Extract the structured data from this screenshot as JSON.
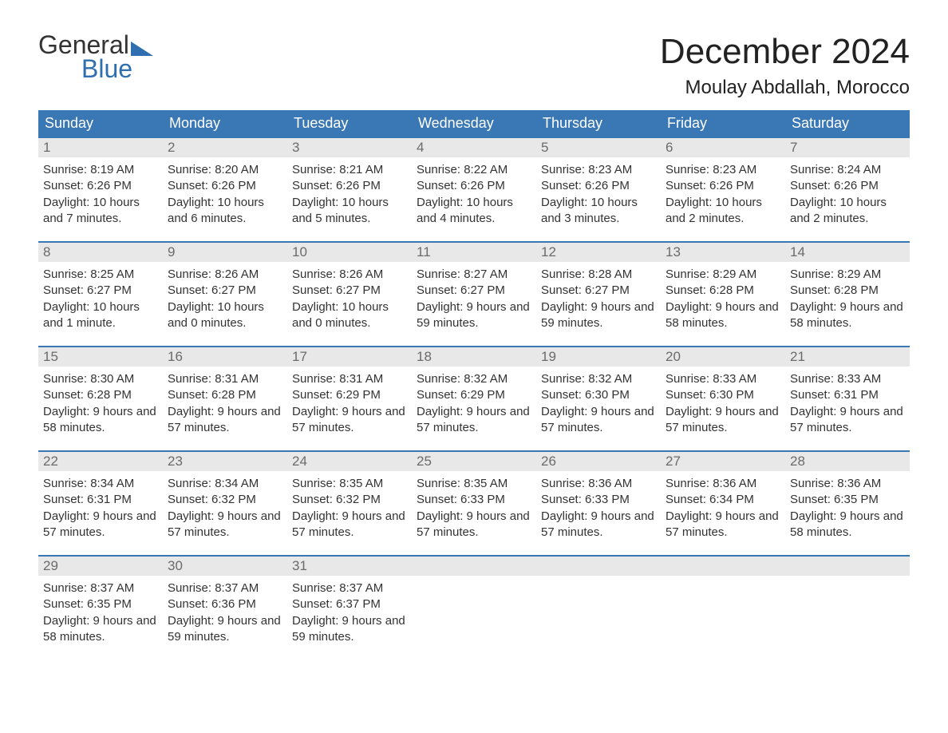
{
  "logo": {
    "word1": "General",
    "word2": "Blue"
  },
  "title": "December 2024",
  "location": "Moulay Abdallah, Morocco",
  "colors": {
    "header_bg": "#3a77b5",
    "header_text": "#ffffff",
    "daynum_bg": "#e8e8e8",
    "daynum_text": "#6b6b6b",
    "border": "#3a77b5",
    "logo_blue": "#2f6fb0",
    "text": "#333333",
    "background": "#ffffff"
  },
  "day_names": [
    "Sunday",
    "Monday",
    "Tuesday",
    "Wednesday",
    "Thursday",
    "Friday",
    "Saturday"
  ],
  "labels": {
    "sunrise": "Sunrise:",
    "sunset": "Sunset:",
    "daylight": "Daylight:"
  },
  "weeks": [
    [
      {
        "n": "1",
        "sr": "8:19 AM",
        "ss": "6:26 PM",
        "dl": "10 hours and 7 minutes."
      },
      {
        "n": "2",
        "sr": "8:20 AM",
        "ss": "6:26 PM",
        "dl": "10 hours and 6 minutes."
      },
      {
        "n": "3",
        "sr": "8:21 AM",
        "ss": "6:26 PM",
        "dl": "10 hours and 5 minutes."
      },
      {
        "n": "4",
        "sr": "8:22 AM",
        "ss": "6:26 PM",
        "dl": "10 hours and 4 minutes."
      },
      {
        "n": "5",
        "sr": "8:23 AM",
        "ss": "6:26 PM",
        "dl": "10 hours and 3 minutes."
      },
      {
        "n": "6",
        "sr": "8:23 AM",
        "ss": "6:26 PM",
        "dl": "10 hours and 2 minutes."
      },
      {
        "n": "7",
        "sr": "8:24 AM",
        "ss": "6:26 PM",
        "dl": "10 hours and 2 minutes."
      }
    ],
    [
      {
        "n": "8",
        "sr": "8:25 AM",
        "ss": "6:27 PM",
        "dl": "10 hours and 1 minute."
      },
      {
        "n": "9",
        "sr": "8:26 AM",
        "ss": "6:27 PM",
        "dl": "10 hours and 0 minutes."
      },
      {
        "n": "10",
        "sr": "8:26 AM",
        "ss": "6:27 PM",
        "dl": "10 hours and 0 minutes."
      },
      {
        "n": "11",
        "sr": "8:27 AM",
        "ss": "6:27 PM",
        "dl": "9 hours and 59 minutes."
      },
      {
        "n": "12",
        "sr": "8:28 AM",
        "ss": "6:27 PM",
        "dl": "9 hours and 59 minutes."
      },
      {
        "n": "13",
        "sr": "8:29 AM",
        "ss": "6:28 PM",
        "dl": "9 hours and 58 minutes."
      },
      {
        "n": "14",
        "sr": "8:29 AM",
        "ss": "6:28 PM",
        "dl": "9 hours and 58 minutes."
      }
    ],
    [
      {
        "n": "15",
        "sr": "8:30 AM",
        "ss": "6:28 PM",
        "dl": "9 hours and 58 minutes."
      },
      {
        "n": "16",
        "sr": "8:31 AM",
        "ss": "6:28 PM",
        "dl": "9 hours and 57 minutes."
      },
      {
        "n": "17",
        "sr": "8:31 AM",
        "ss": "6:29 PM",
        "dl": "9 hours and 57 minutes."
      },
      {
        "n": "18",
        "sr": "8:32 AM",
        "ss": "6:29 PM",
        "dl": "9 hours and 57 minutes."
      },
      {
        "n": "19",
        "sr": "8:32 AM",
        "ss": "6:30 PM",
        "dl": "9 hours and 57 minutes."
      },
      {
        "n": "20",
        "sr": "8:33 AM",
        "ss": "6:30 PM",
        "dl": "9 hours and 57 minutes."
      },
      {
        "n": "21",
        "sr": "8:33 AM",
        "ss": "6:31 PM",
        "dl": "9 hours and 57 minutes."
      }
    ],
    [
      {
        "n": "22",
        "sr": "8:34 AM",
        "ss": "6:31 PM",
        "dl": "9 hours and 57 minutes."
      },
      {
        "n": "23",
        "sr": "8:34 AM",
        "ss": "6:32 PM",
        "dl": "9 hours and 57 minutes."
      },
      {
        "n": "24",
        "sr": "8:35 AM",
        "ss": "6:32 PM",
        "dl": "9 hours and 57 minutes."
      },
      {
        "n": "25",
        "sr": "8:35 AM",
        "ss": "6:33 PM",
        "dl": "9 hours and 57 minutes."
      },
      {
        "n": "26",
        "sr": "8:36 AM",
        "ss": "6:33 PM",
        "dl": "9 hours and 57 minutes."
      },
      {
        "n": "27",
        "sr": "8:36 AM",
        "ss": "6:34 PM",
        "dl": "9 hours and 57 minutes."
      },
      {
        "n": "28",
        "sr": "8:36 AM",
        "ss": "6:35 PM",
        "dl": "9 hours and 58 minutes."
      }
    ],
    [
      {
        "n": "29",
        "sr": "8:37 AM",
        "ss": "6:35 PM",
        "dl": "9 hours and 58 minutes."
      },
      {
        "n": "30",
        "sr": "8:37 AM",
        "ss": "6:36 PM",
        "dl": "9 hours and 59 minutes."
      },
      {
        "n": "31",
        "sr": "8:37 AM",
        "ss": "6:37 PM",
        "dl": "9 hours and 59 minutes."
      },
      null,
      null,
      null,
      null
    ]
  ]
}
